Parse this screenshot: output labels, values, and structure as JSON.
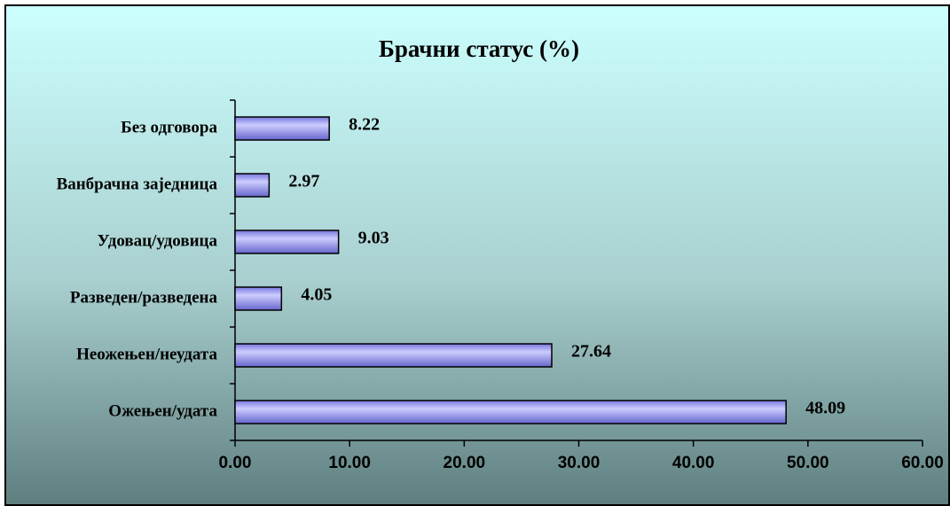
{
  "chart_data": {
    "type": "bar",
    "orientation": "horizontal",
    "title": "Брачни статус (%)",
    "categories": [
      "Без одговора",
      "Ванбрачна заједница",
      "Удовац/удовица",
      "Разведен/разведена",
      "Неожењен/неудата",
      "Ожењен/удата"
    ],
    "values": [
      8.22,
      2.97,
      9.03,
      4.05,
      27.64,
      48.09
    ],
    "color": "#9999ff",
    "xlim": [
      0,
      60
    ],
    "xticks": [
      {
        "value": 0,
        "label": "0.00"
      },
      {
        "value": 10,
        "label": "10.00"
      },
      {
        "value": 20,
        "label": "20.00"
      },
      {
        "value": 30,
        "label": "30.00"
      },
      {
        "value": 40,
        "label": "40.00"
      },
      {
        "value": 50,
        "label": "50.00"
      },
      {
        "value": 60,
        "label": "60.00"
      }
    ],
    "grid": false
  }
}
